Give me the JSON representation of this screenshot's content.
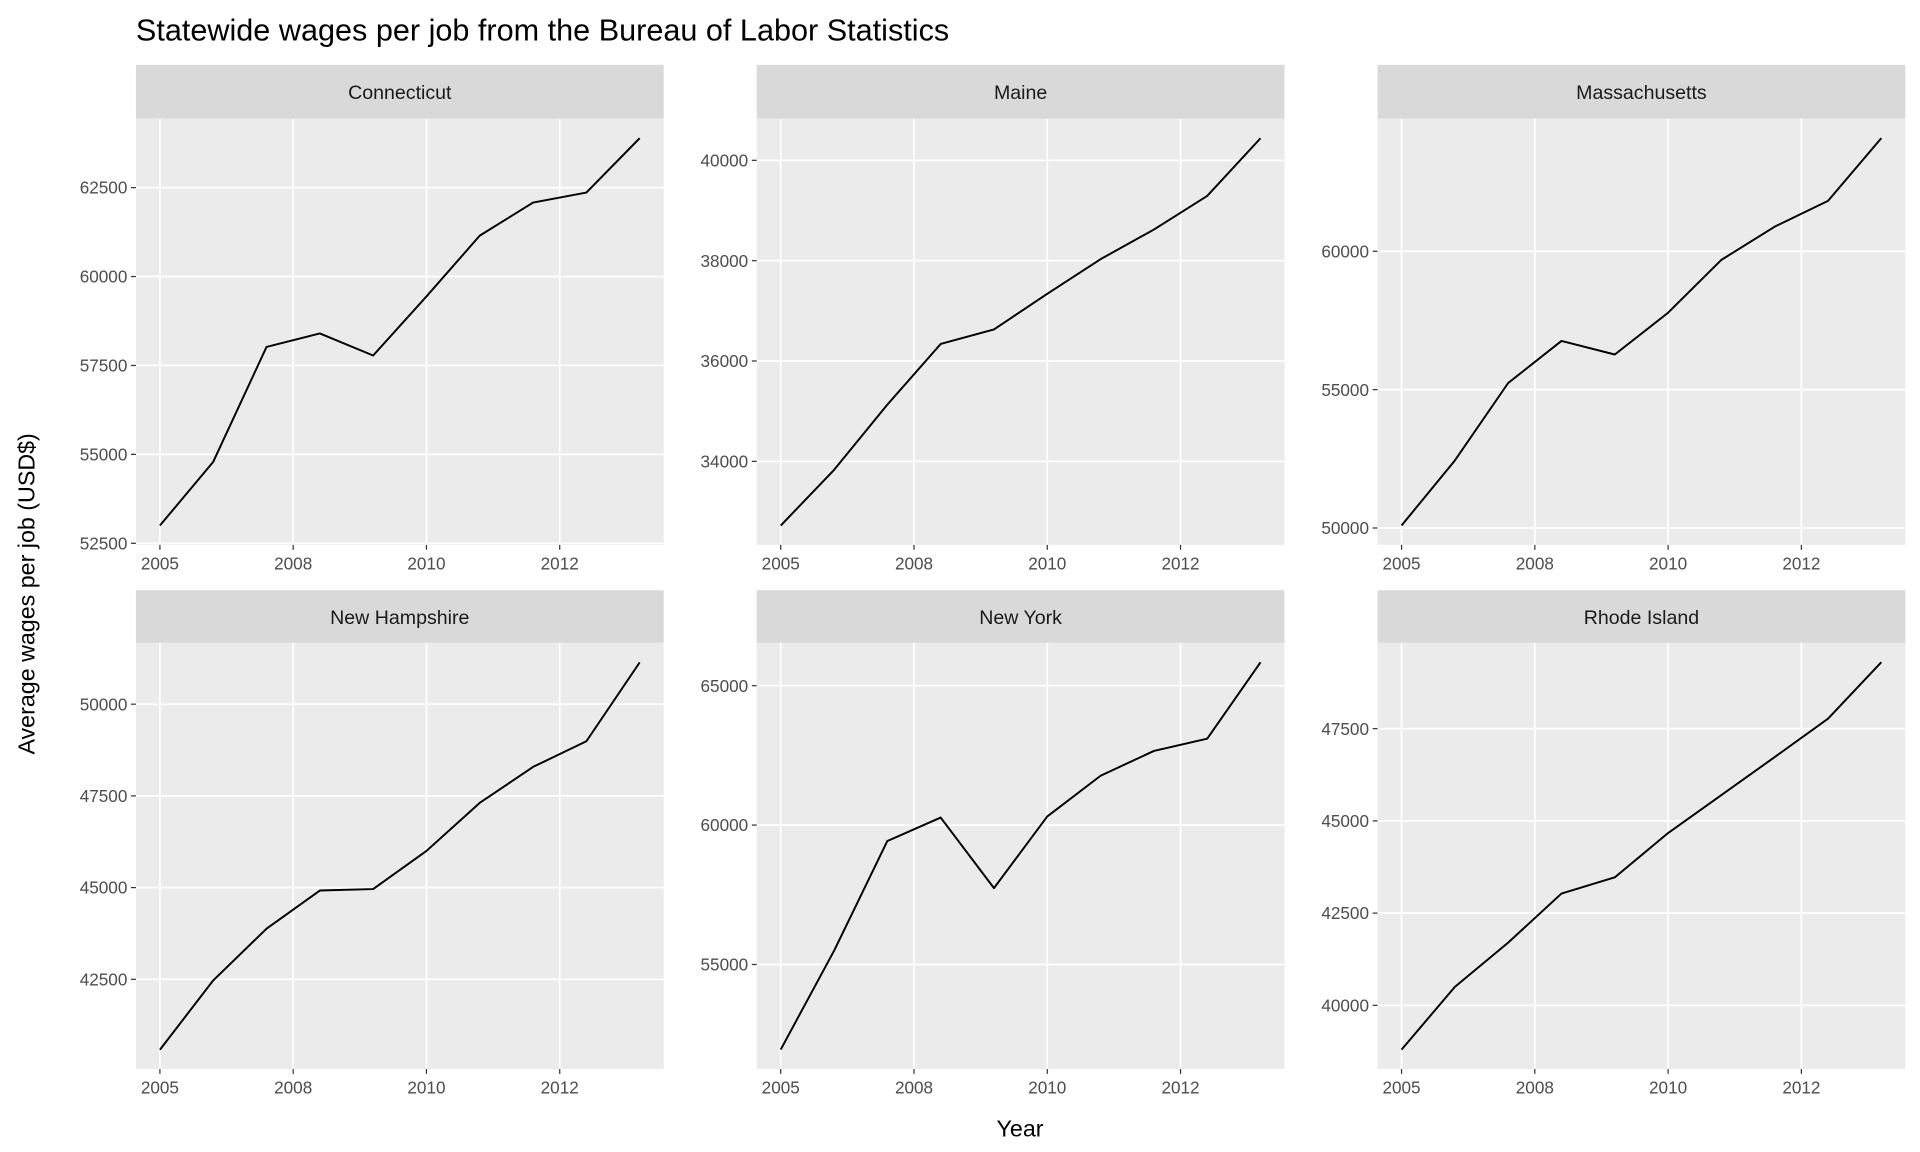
{
  "title": "Statewide wages per job from the Bureau of Labor Statistics",
  "xlabel": "Year",
  "ylabel": "Average wages per job (USD$)",
  "chart_data": [
    {
      "type": "line",
      "title": "Connecticut",
      "color": "#000000",
      "x": [
        2005,
        2006,
        2007,
        2008,
        2009,
        2010,
        2011,
        2012,
        2013,
        2014
      ],
      "values": [
        53000,
        54790,
        58020,
        58400,
        57780,
        59440,
        61150,
        62080,
        62360,
        63890
      ],
      "xlim": [
        2004.55,
        2014.45
      ],
      "xticks": [
        2005,
        {
          "value": 2007.5,
          "label": "2008"
        },
        2010,
        {
          "value": 2012.5,
          "label": "2012"
        }
      ],
      "ylim": [
        52455,
        64435
      ],
      "yticks": [
        52500,
        55000,
        57500,
        60000,
        62500
      ],
      "grid": true
    },
    {
      "type": "line",
      "title": "Maine",
      "color": "#000000",
      "x": [
        2005,
        2006,
        2007,
        2008,
        2009,
        2010,
        2011,
        2012,
        2013,
        2014
      ],
      "values": [
        32720,
        33830,
        35130,
        36340,
        36630,
        37340,
        38030,
        38620,
        39290,
        40440
      ],
      "xlim": [
        2004.55,
        2014.45
      ],
      "xticks": [
        2005,
        {
          "value": 2007.5,
          "label": "2008"
        },
        2010,
        {
          "value": 2012.5,
          "label": "2012"
        }
      ],
      "ylim": [
        32335,
        40828
      ],
      "yticks": [
        34000,
        36000,
        38000,
        40000
      ],
      "grid": true
    },
    {
      "type": "line",
      "title": "Massachusetts",
      "color": "#000000",
      "x": [
        2005,
        2006,
        2007,
        2008,
        2009,
        2010,
        2011,
        2012,
        2013,
        2014
      ],
      "values": [
        50090,
        52440,
        55240,
        56760,
        56270,
        57780,
        59690,
        60890,
        61820,
        64090
      ],
      "xlim": [
        2004.55,
        2014.45
      ],
      "xticks": [
        2005,
        {
          "value": 2007.5,
          "label": "2008"
        },
        2010,
        {
          "value": 2012.5,
          "label": "2012"
        }
      ],
      "ylim": [
        49389,
        64789
      ],
      "yticks": [
        50000,
        55000,
        60000
      ],
      "grid": true
    },
    {
      "type": "line",
      "title": "New Hampshire",
      "color": "#000000",
      "x": [
        2005,
        2006,
        2007,
        2008,
        2009,
        2010,
        2011,
        2012,
        2013,
        2014
      ],
      "values": [
        40580,
        42470,
        43880,
        44920,
        44960,
        46000,
        47310,
        48290,
        48990,
        51140
      ],
      "xlim": [
        2004.55,
        2014.45
      ],
      "xticks": [
        2005,
        {
          "value": 2007.5,
          "label": "2008"
        },
        2010,
        {
          "value": 2012.5,
          "label": "2012"
        }
      ],
      "ylim": [
        40055,
        51672
      ],
      "yticks": [
        42500,
        45000,
        47500,
        50000
      ],
      "grid": true
    },
    {
      "type": "line",
      "title": "New York",
      "color": "#000000",
      "x": [
        2005,
        2006,
        2007,
        2008,
        2009,
        2010,
        2011,
        2012,
        2013,
        2014
      ],
      "values": [
        51950,
        55490,
        59430,
        60270,
        57740,
        60310,
        61770,
        62660,
        63100,
        65840
      ],
      "xlim": [
        2004.55,
        2014.45
      ],
      "xticks": [
        2005,
        {
          "value": 2007.5,
          "label": "2008"
        },
        2010,
        {
          "value": 2012.5,
          "label": "2012"
        }
      ],
      "ylim": [
        51252,
        66536
      ],
      "yticks": [
        55000,
        60000,
        65000
      ],
      "grid": true
    },
    {
      "type": "line",
      "title": "Rhode Island",
      "color": "#000000",
      "x": [
        2005,
        2006,
        2007,
        2008,
        2009,
        2010,
        2011,
        2012,
        2013,
        2014
      ],
      "values": [
        38800,
        40500,
        41700,
        43030,
        43470,
        44670,
        45700,
        46730,
        47770,
        49300
      ],
      "xlim": [
        2004.55,
        2014.45
      ],
      "xticks": [
        2005,
        {
          "value": 2007.5,
          "label": "2008"
        },
        2010,
        {
          "value": 2012.5,
          "label": "2012"
        }
      ],
      "ylim": [
        38275,
        49825
      ],
      "yticks": [
        40000,
        42500,
        45000,
        47500
      ],
      "grid": true
    }
  ]
}
